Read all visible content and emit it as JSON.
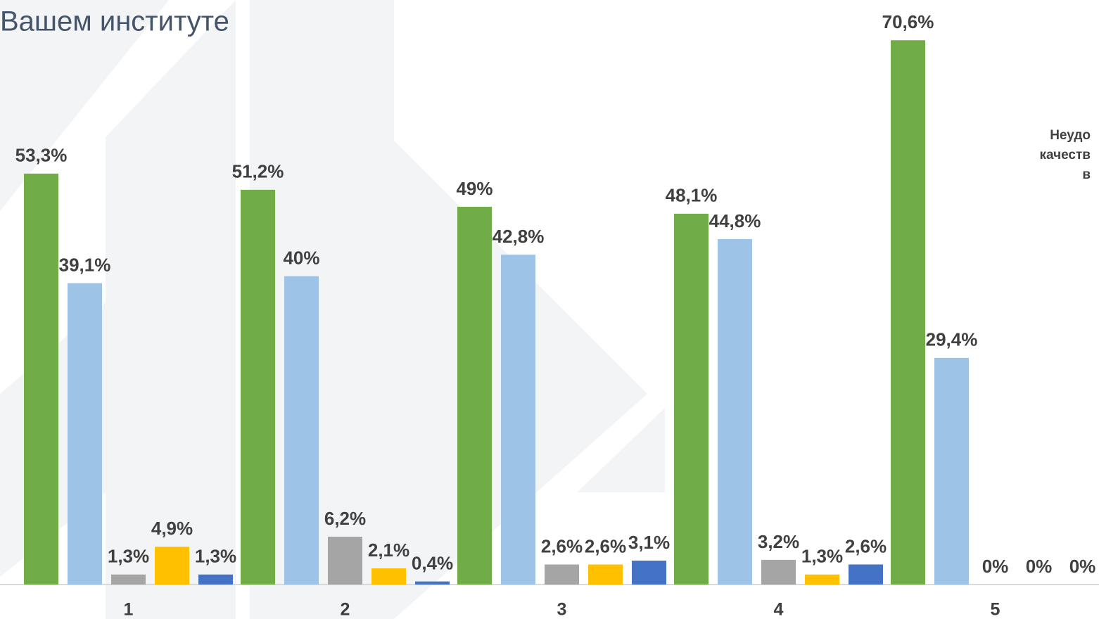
{
  "chart_data": {
    "type": "bar",
    "title": "Вашем институте",
    "annotation": [
      "Неудо",
      "качеств",
      "в"
    ],
    "categories": [
      "1",
      "2",
      "3",
      "4",
      "5"
    ],
    "series": [
      {
        "color": "#70ad47",
        "values": [
          53.3,
          51.2,
          49,
          48.1,
          70.6
        ],
        "value_labels": [
          "53,3%",
          "51,2%",
          "49%",
          "48,1%",
          "70,6%"
        ]
      },
      {
        "color": "#9dc3e6",
        "values": [
          39.1,
          40,
          42.8,
          44.8,
          29.4
        ],
        "value_labels": [
          "39,1%",
          "40%",
          "42,8%",
          "44,8%",
          "29,4%"
        ]
      },
      {
        "color": "#a5a5a5",
        "values": [
          1.3,
          6.2,
          2.6,
          3.2,
          0
        ],
        "value_labels": [
          "1,3%",
          "6,2%",
          "2,6%",
          "3,2%",
          "0%"
        ]
      },
      {
        "color": "#ffc000",
        "values": [
          4.9,
          2.1,
          2.6,
          1.3,
          0
        ],
        "value_labels": [
          "4,9%",
          "2,1%",
          "2,6%",
          "1,3%",
          "0%"
        ]
      },
      {
        "color": "#4472c4",
        "values": [
          1.3,
          0.4,
          3.1,
          2.6,
          0
        ],
        "value_labels": [
          "1,3%",
          "0,4%",
          "3,1%",
          "2,6%",
          "0%"
        ]
      }
    ],
    "ylim": [
      0,
      75
    ]
  }
}
